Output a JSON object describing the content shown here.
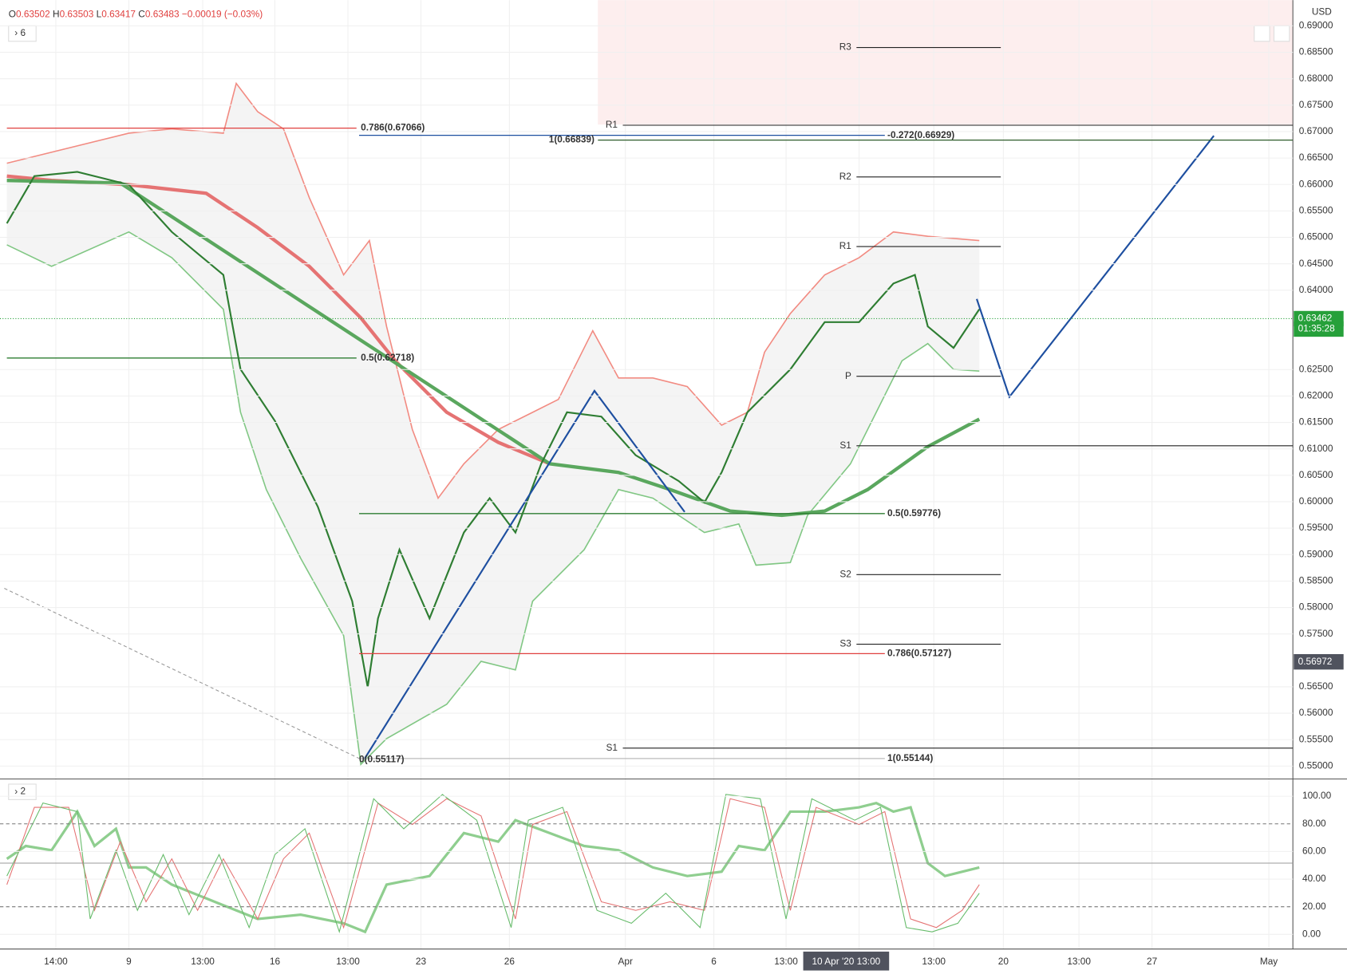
{
  "header": {
    "ohlc": [
      {
        "key": "O",
        "value": "0.63502"
      },
      {
        "key": "H",
        "value": "0.63503"
      },
      {
        "key": "L",
        "value": "0.63417"
      },
      {
        "key": "C",
        "value": "0.63483"
      }
    ],
    "change": "−0.00019 (−0.03%)"
  },
  "pane_labels": [
    "6",
    "2"
  ],
  "currency": "USD",
  "price_axis": {
    "ylim": [
      0.54789,
      0.69487
    ],
    "yticks": [
      {
        "value": 0.69,
        "label": "0.69000"
      },
      {
        "value": 0.685,
        "label": "0.68500"
      },
      {
        "value": 0.68,
        "label": "0.68000"
      },
      {
        "value": 0.675,
        "label": "0.67500"
      },
      {
        "value": 0.67,
        "label": "0.67000"
      },
      {
        "value": 0.665,
        "label": "0.66500"
      },
      {
        "value": 0.66,
        "label": "0.66000"
      },
      {
        "value": 0.655,
        "label": "0.65500"
      },
      {
        "value": 0.65,
        "label": "0.65000"
      },
      {
        "value": 0.645,
        "label": "0.64500"
      },
      {
        "value": 0.64,
        "label": "0.64000"
      },
      {
        "value": 0.625,
        "label": "0.62500"
      },
      {
        "value": 0.62,
        "label": "0.62000"
      },
      {
        "value": 0.615,
        "label": "0.61500"
      },
      {
        "value": 0.61,
        "label": "0.61000"
      },
      {
        "value": 0.605,
        "label": "0.60500"
      },
      {
        "value": 0.6,
        "label": "0.60000"
      },
      {
        "value": 0.595,
        "label": "0.59500"
      },
      {
        "value": 0.59,
        "label": "0.59000"
      },
      {
        "value": 0.585,
        "label": "0.58500"
      },
      {
        "value": 0.58,
        "label": "0.58000"
      },
      {
        "value": 0.575,
        "label": "0.57500"
      },
      {
        "value": 0.565,
        "label": "0.56500"
      },
      {
        "value": 0.56,
        "label": "0.56000"
      },
      {
        "value": 0.555,
        "label": "0.55500"
      },
      {
        "value": 0.55,
        "label": "0.55000"
      }
    ],
    "price_tags": [
      {
        "value": 0.63462,
        "label": "0.63462",
        "color": "#26a03a"
      },
      {
        "value": 0.63266,
        "label": "01:35:28",
        "color": "#26a03a"
      },
      {
        "value": 0.56972,
        "label": "0.56972",
        "color": "#50535e"
      }
    ]
  },
  "fib_levels": [
    {
      "label": "0.786(0.67066)",
      "value": 0.67066,
      "color": "#e0403f"
    },
    {
      "label": "0.5(0.62718)",
      "value": 0.62718,
      "color": "#2e7d32"
    },
    {
      "label": "-0.272(0.66929)",
      "value": 0.66929,
      "color": "#1e4fa0"
    },
    {
      "label": "1(0.66839)",
      "value": 0.66839,
      "color": "#2e5d2a"
    },
    {
      "label": "0.5(0.59776)",
      "value": 0.59776,
      "color": "#2e7d32"
    },
    {
      "label": "0.786(0.57127)",
      "value": 0.57127,
      "color": "#e0403f"
    },
    {
      "label": "1(0.55144)",
      "value": 0.55144,
      "color": "#bbbbbb"
    },
    {
      "label": "0(0.55117)",
      "value": 0.55117,
      "color": "#bbbbbb"
    }
  ],
  "pivots": [
    {
      "label": "R3",
      "value": 0.6859
    },
    {
      "label": "R2",
      "value": 0.66142
    },
    {
      "label": "R1",
      "value": 0.64826
    },
    {
      "label": "P",
      "value": 0.62373
    },
    {
      "label": "S1",
      "value": 0.61058
    },
    {
      "label": "S2",
      "value": 0.58622
    },
    {
      "label": "S3",
      "value": 0.57306
    },
    {
      "label": "R1",
      "value": 0.6712
    },
    {
      "label": "S1",
      "value": 0.55341
    }
  ],
  "oscillator_axis": {
    "ylim": [
      -10.6,
      110.6
    ],
    "yticks": [
      {
        "value": 100,
        "label": "100.00"
      },
      {
        "value": 80,
        "label": "80.00"
      },
      {
        "value": 60,
        "label": "60.00"
      },
      {
        "value": 40,
        "label": "40.00"
      },
      {
        "value": 20,
        "label": "20.00"
      },
      {
        "value": 0,
        "label": "0.00"
      }
    ]
  },
  "time_axis": [
    "14:00",
    "9",
    "13:00",
    "16",
    "13:00",
    "23",
    "26",
    "Apr",
    "6",
    "13:00",
    "13:00",
    "20",
    "13:00",
    "27",
    "May"
  ],
  "crosshair_time": "10 Apr '20  13:00"
}
